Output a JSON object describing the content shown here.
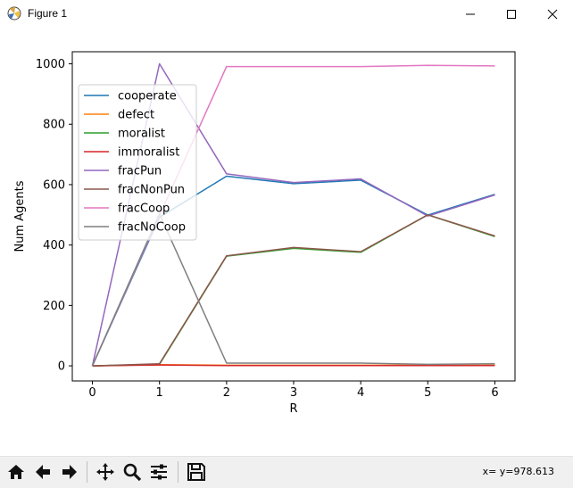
{
  "window": {
    "title": "Figure 1"
  },
  "toolbar": {
    "buttons": [
      {
        "name": "home-icon",
        "label": "Home"
      },
      {
        "name": "back-icon",
        "label": "Back"
      },
      {
        "name": "forward-icon",
        "label": "Forward"
      },
      {
        "name": "pan-icon",
        "label": "Pan"
      },
      {
        "name": "zoom-icon",
        "label": "Zoom"
      },
      {
        "name": "subplots-icon",
        "label": "Configure subplots"
      },
      {
        "name": "save-icon",
        "label": "Save"
      }
    ],
    "coords_text": "x= y=978.613"
  },
  "chart_data": {
    "type": "line",
    "xlabel": "R",
    "ylabel": "Num Agents",
    "x": [
      0,
      1,
      2,
      3,
      4,
      5,
      6
    ],
    "xlim": [
      -0.3,
      6.3
    ],
    "ylim": [
      -50,
      1040
    ],
    "xticks": [
      0,
      1,
      2,
      3,
      4,
      5,
      6
    ],
    "yticks": [
      0,
      200,
      400,
      600,
      800,
      1000
    ],
    "legend_position": "top-left",
    "grid": false,
    "series": [
      {
        "name": "cooperate",
        "color": "#1f77b4",
        "values": [
          0,
          492,
          628,
          603,
          615,
          499,
          568
        ]
      },
      {
        "name": "defect",
        "color": "#ff7f0e",
        "values": [
          0,
          4,
          2,
          2,
          2,
          2,
          2
        ]
      },
      {
        "name": "moralist",
        "color": "#2ca02c",
        "values": [
          0,
          5,
          363,
          389,
          376,
          500,
          428
        ]
      },
      {
        "name": "immoralist",
        "color": "#d62728",
        "values": [
          0,
          3,
          1,
          1,
          1,
          1,
          1
        ]
      },
      {
        "name": "fracPun",
        "color": "#9467bd",
        "values": [
          0,
          1000,
          636,
          607,
          619,
          496,
          566
        ]
      },
      {
        "name": "fracNonPun",
        "color": "#8c564b",
        "values": [
          0,
          7,
          364,
          392,
          378,
          500,
          430
        ]
      },
      {
        "name": "fracCoop",
        "color": "#e377c2",
        "values": [
          0,
          498,
          991,
          991,
          991,
          995,
          993
        ]
      },
      {
        "name": "fracNoCoop",
        "color": "#7f7f7f",
        "values": [
          0,
          503,
          9,
          9,
          9,
          5,
          7
        ]
      }
    ]
  }
}
